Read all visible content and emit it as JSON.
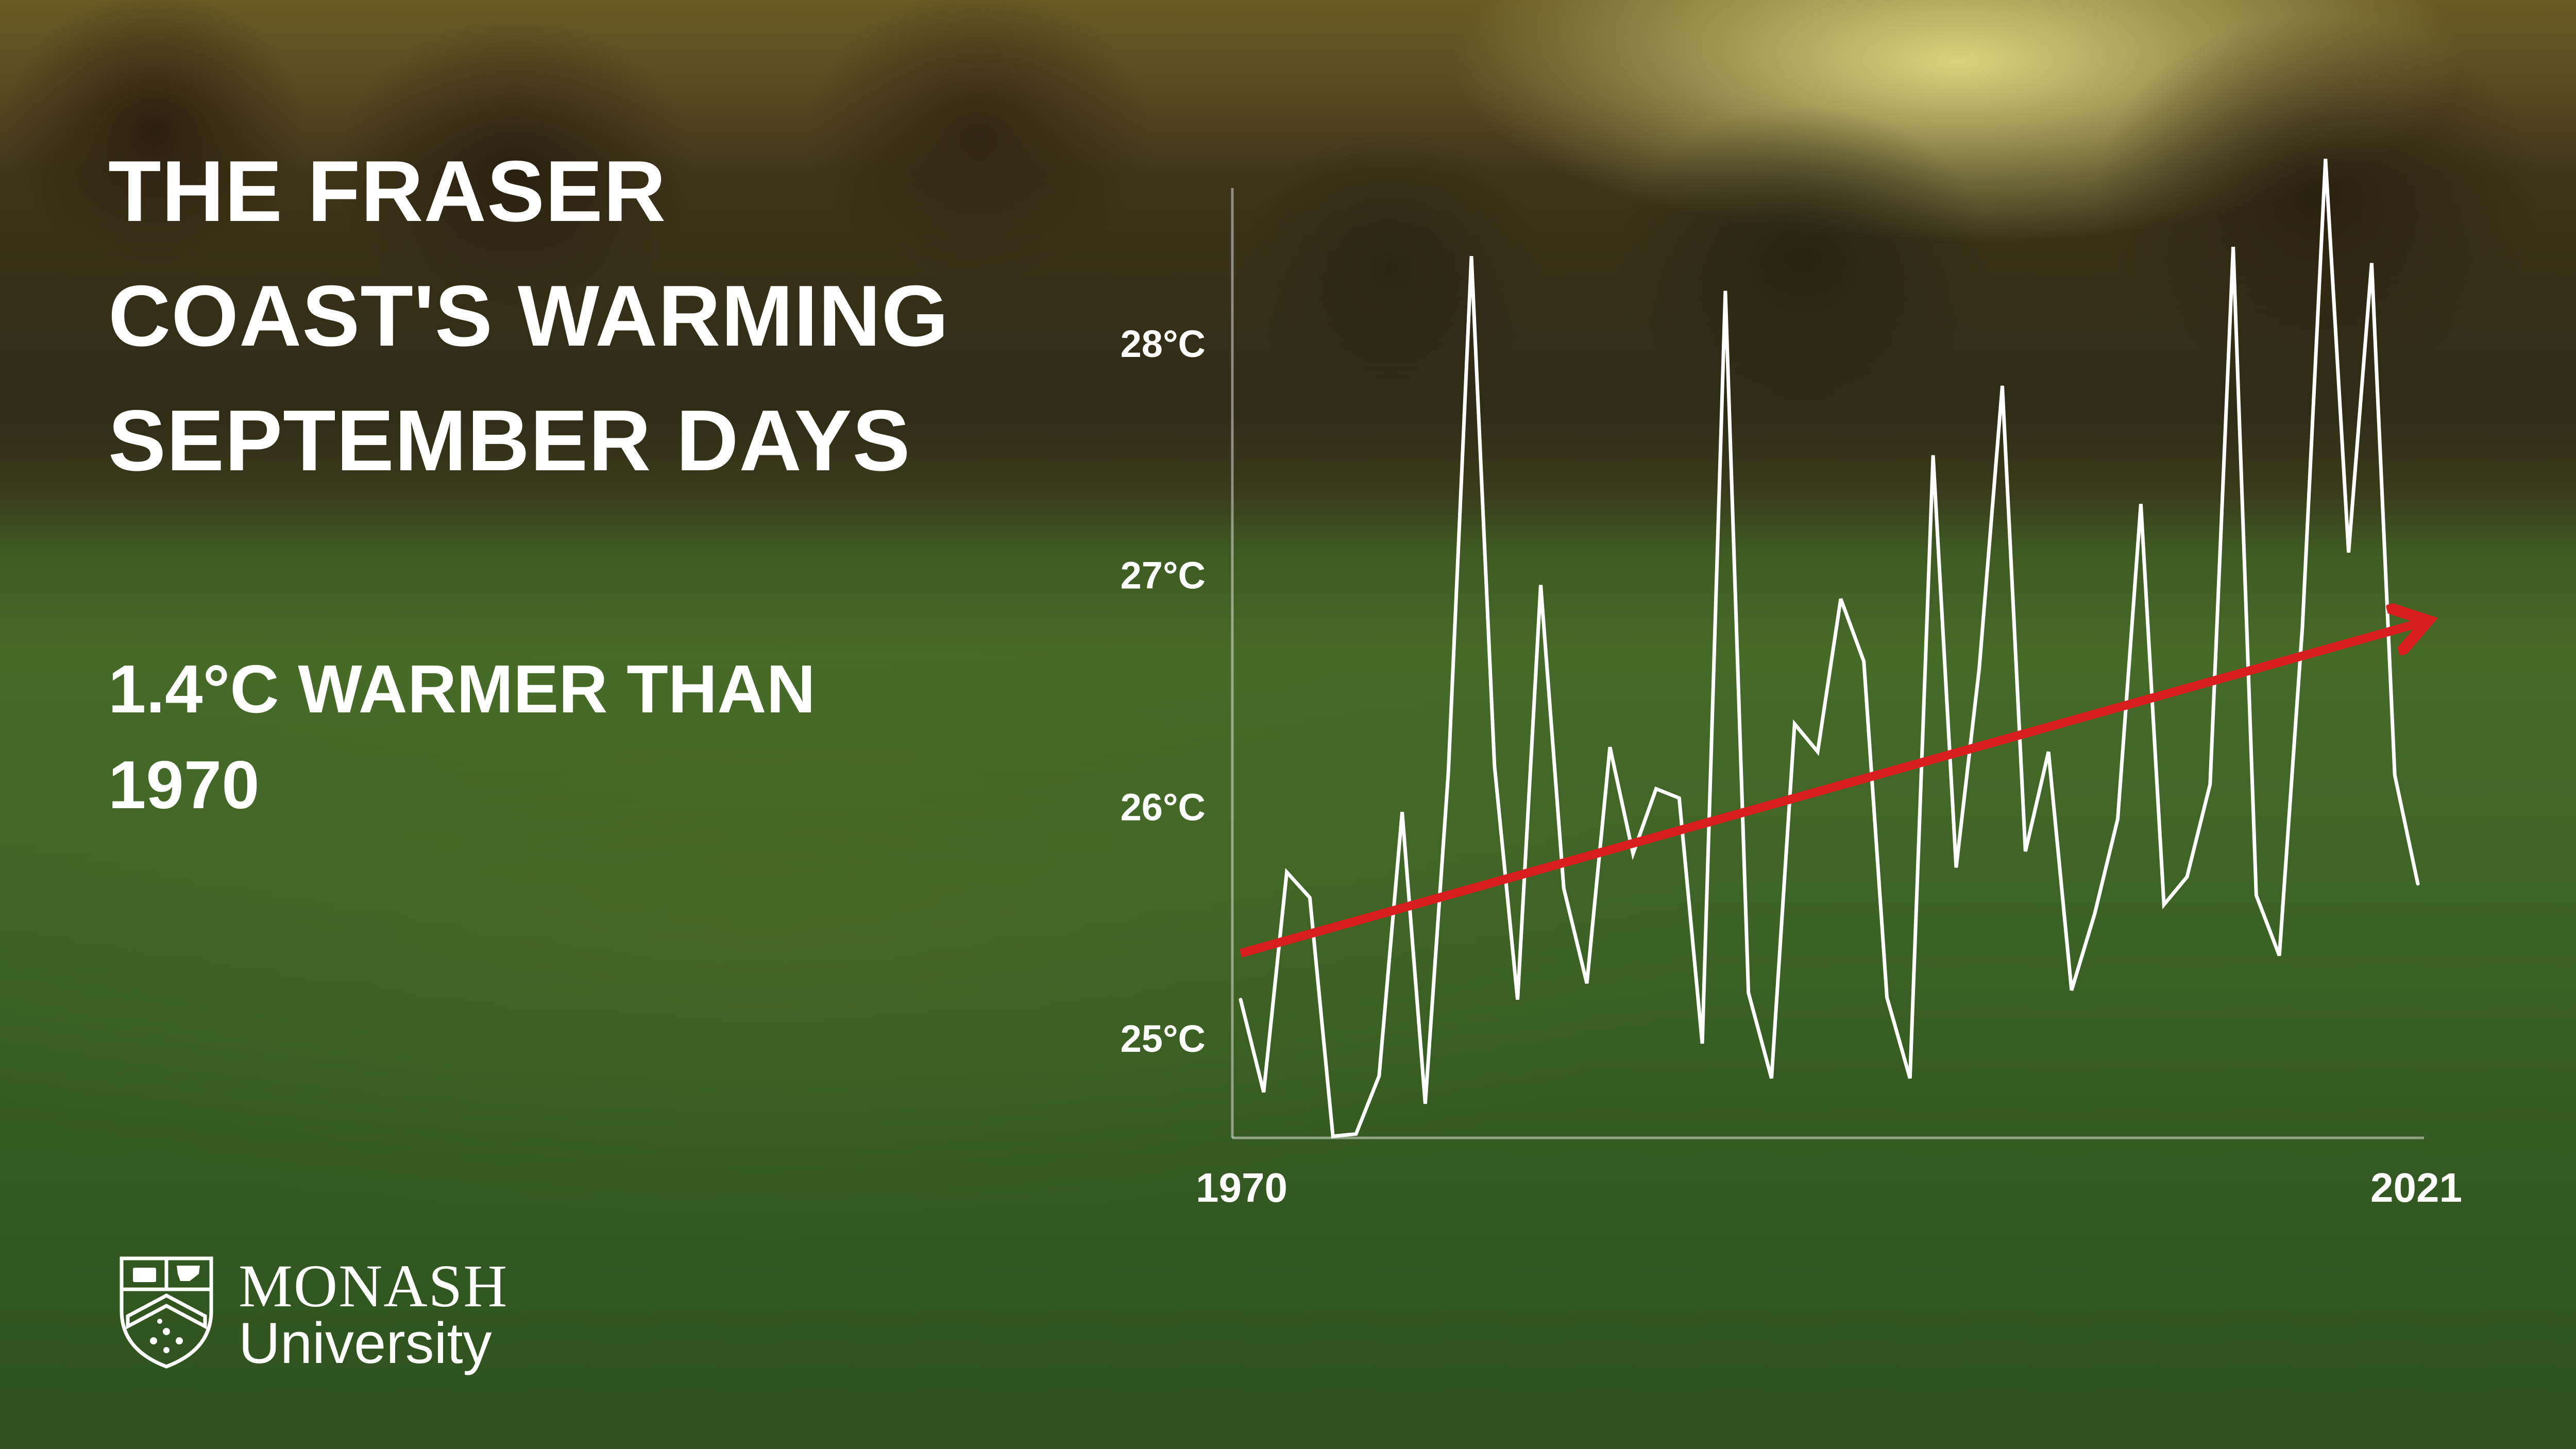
{
  "title_lines": [
    "THE FRASER",
    "COAST'S WARMING",
    "SEPTEMBER DAYS"
  ],
  "subtitle_lines": [
    "1.4°C WARMER THAN",
    "1970"
  ],
  "logo": {
    "name": "MONASH",
    "sub": "University"
  },
  "colors": {
    "line": "#ffffff",
    "trend": "#d81e1e",
    "text": "#ffffff"
  },
  "chart_data": {
    "type": "line",
    "x_start": 1970,
    "x_end": 2021,
    "xticks": [
      "1970",
      "2021"
    ],
    "yticks": [
      {
        "value": 25,
        "label": "25°C"
      },
      {
        "value": 26,
        "label": "26°C"
      },
      {
        "value": 27,
        "label": "27°C"
      },
      {
        "value": 28,
        "label": "28°C"
      }
    ],
    "ylim": [
      24.6,
      28.7
    ],
    "grid": false,
    "series": [
      {
        "x": [
          1970,
          1971,
          1972,
          1973,
          1974,
          1975,
          1976,
          1977,
          1978,
          1979,
          1980,
          1981,
          1982,
          1983,
          1984,
          1985,
          1986,
          1987,
          1988,
          1989,
          1990,
          1991,
          1992,
          1993,
          1994,
          1995,
          1996,
          1997,
          1998,
          1999,
          2000,
          2001,
          2002,
          2003,
          2004,
          2005,
          2006,
          2007,
          2008,
          2009,
          2010,
          2011,
          2012,
          2013,
          2014,
          2015,
          2016,
          2017,
          2018,
          2019,
          2020,
          2021
        ],
        "values": [
          25.17,
          24.77,
          25.72,
          25.61,
          24.58,
          24.59,
          24.84,
          25.98,
          24.72,
          26.15,
          28.38,
          26.18,
          25.17,
          26.96,
          25.65,
          25.24,
          26.26,
          25.8,
          26.08,
          26.04,
          24.98,
          28.23,
          25.2,
          24.83,
          26.36,
          26.24,
          26.9,
          26.63,
          25.18,
          24.83,
          27.52,
          25.74,
          26.6,
          27.82,
          25.81,
          26.24,
          25.21,
          25.54,
          25.95,
          27.31,
          25.58,
          25.7,
          26.1,
          28.42,
          25.62,
          25.36,
          26.78,
          28.8,
          27.1,
          28.35,
          26.14,
          25.67
        ]
      }
    ],
    "trend": {
      "from": {
        "x": 1970,
        "value": 25.37
      },
      "to": {
        "x": 2021,
        "value": 26.8
      }
    }
  }
}
